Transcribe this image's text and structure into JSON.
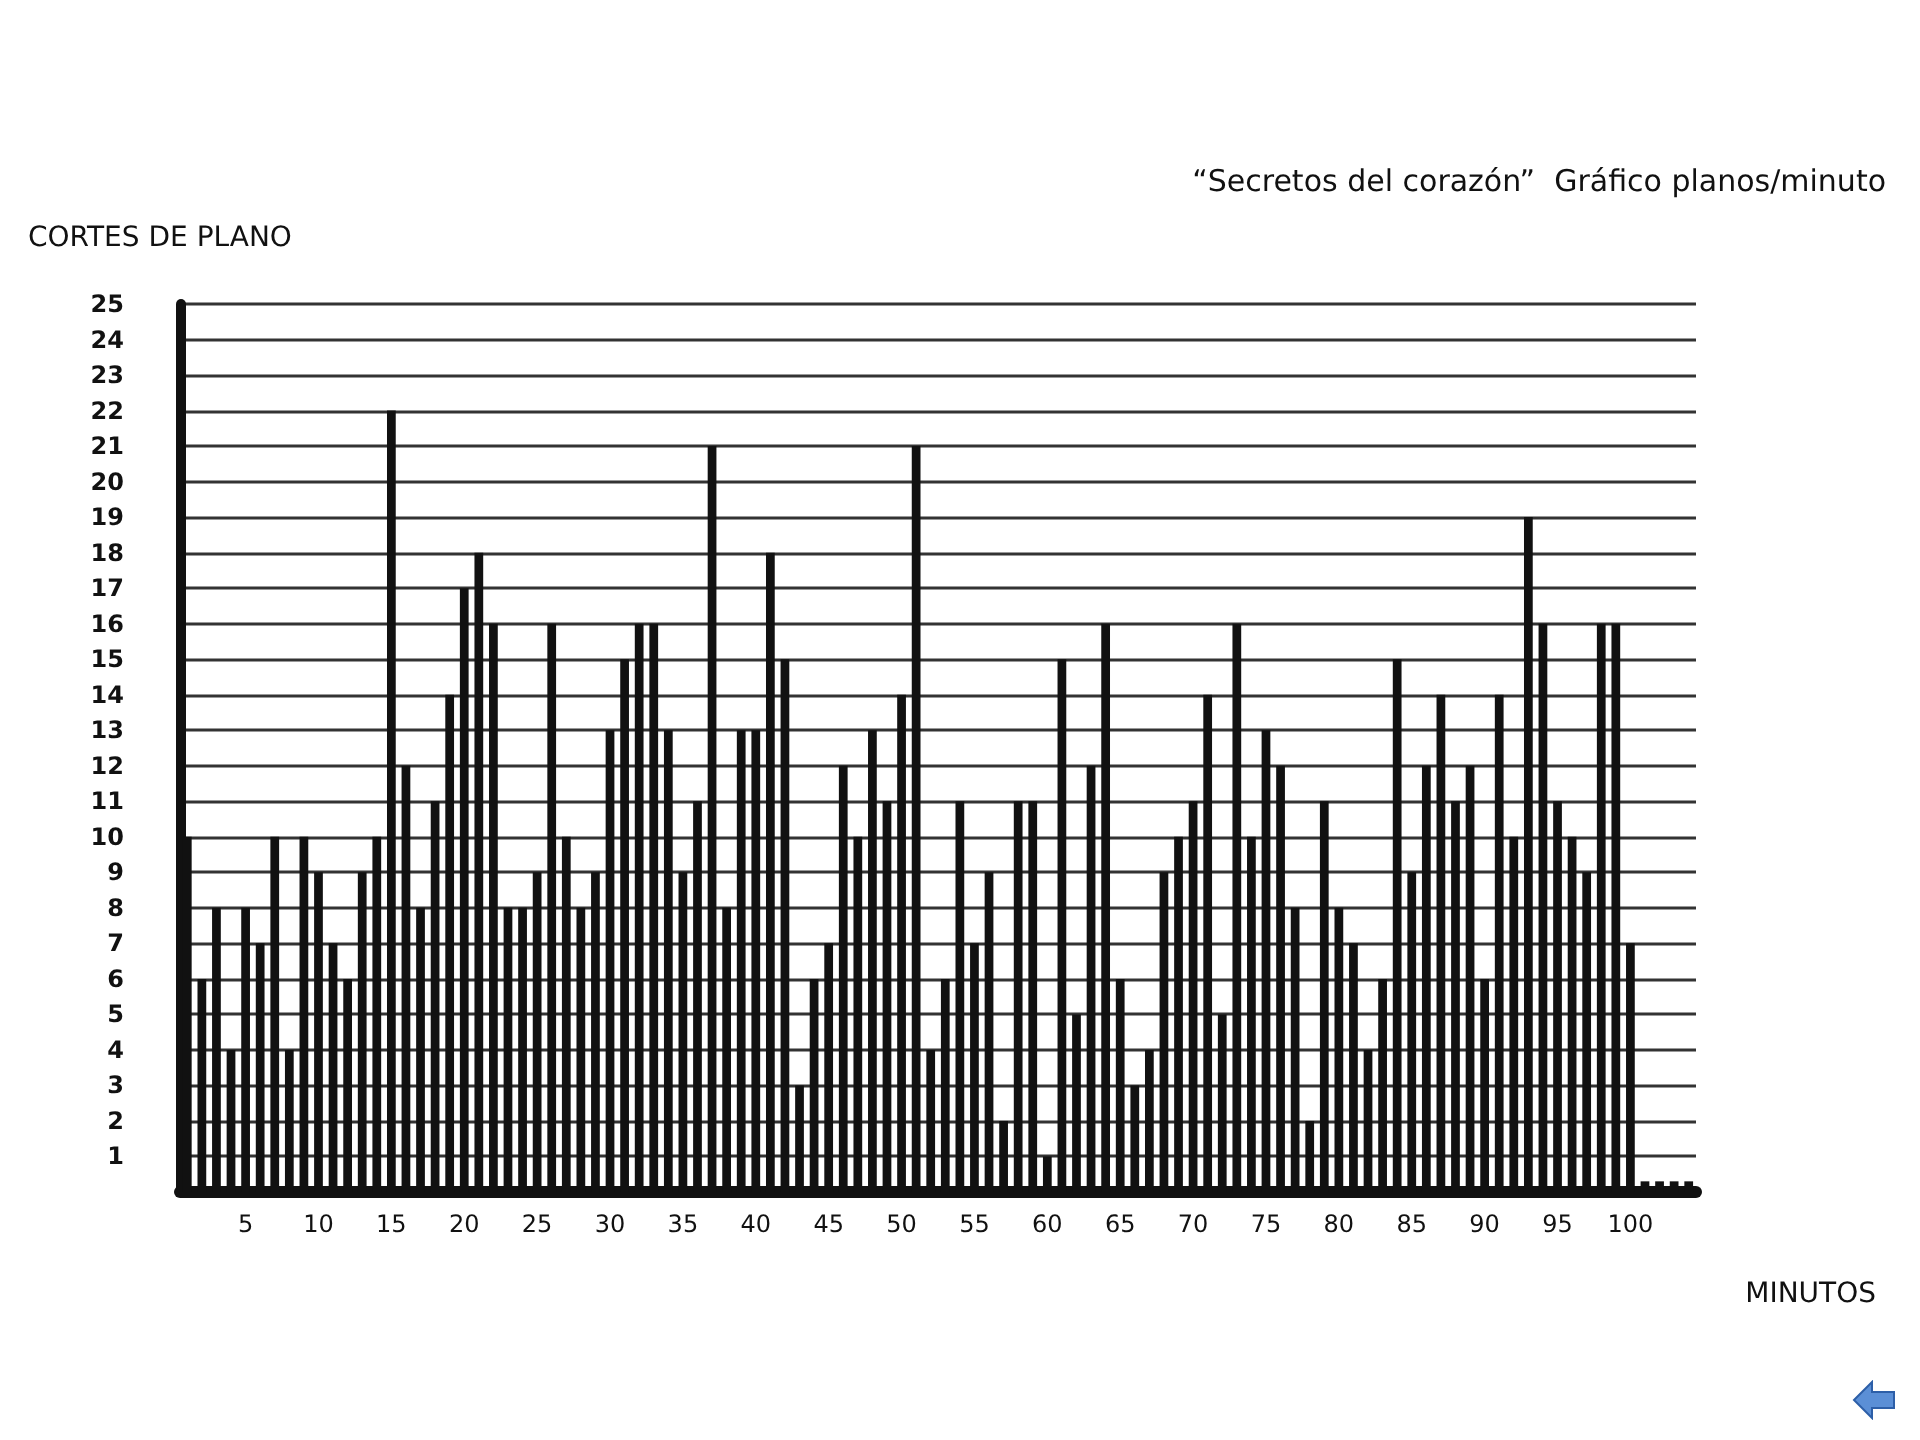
{
  "chart_data": {
    "type": "bar",
    "title": "“Secretos del corazón”  Gráfico planos/minuto",
    "xlabel": "MINUTOS",
    "ylabel": "CORTES DE PLANO",
    "categories": [
      null,
      null,
      null,
      null,
      "5",
      null,
      null,
      null,
      null,
      "10",
      null,
      null,
      null,
      null,
      "15",
      null,
      null,
      null,
      null,
      "20",
      null,
      null,
      null,
      null,
      "25",
      null,
      null,
      null,
      null,
      "30",
      null,
      null,
      null,
      null,
      "35",
      null,
      null,
      null,
      null,
      "40",
      null,
      null,
      null,
      null,
      "45",
      null,
      null,
      null,
      null,
      "50",
      null,
      null,
      null,
      null,
      "55",
      null,
      null,
      null,
      null,
      "60",
      null,
      null,
      null,
      null,
      "65",
      null,
      null,
      null,
      null,
      "70",
      null,
      null,
      null,
      null,
      "75",
      null,
      null,
      null,
      null,
      "80",
      null,
      null,
      null,
      null,
      "85",
      null,
      null,
      null,
      null,
      "90",
      null,
      null,
      null,
      null,
      "95",
      null,
      null,
      null,
      null,
      "100",
      null,
      null,
      null,
      null
    ],
    "values": [
      10,
      6,
      8,
      4,
      8,
      7,
      10,
      4,
      10,
      9,
      7,
      6,
      9,
      10,
      22,
      12,
      8,
      11,
      14,
      17,
      18,
      16,
      8,
      8,
      9,
      16,
      10,
      8,
      9,
      13,
      15,
      16,
      16,
      13,
      9,
      11,
      21,
      8,
      13,
      13,
      18,
      15,
      3,
      6,
      7,
      12,
      10,
      13,
      11,
      14,
      21,
      4,
      6,
      11,
      7,
      9,
      2,
      11,
      11,
      1,
      15,
      5,
      12,
      16,
      6,
      3,
      4,
      9,
      10,
      11,
      14,
      5,
      16,
      10,
      13,
      12,
      8,
      2,
      11,
      8,
      7,
      4,
      6,
      15,
      9,
      12,
      14,
      11,
      12,
      6,
      14,
      10,
      19,
      16,
      11,
      10,
      9,
      16,
      16,
      7,
      0.3,
      0.3,
      0.3,
      0.3
    ],
    "color": "#111111",
    "ylim": [
      0,
      25
    ],
    "yticks": [
      1,
      2,
      3,
      4,
      5,
      6,
      7,
      8,
      9,
      10,
      11,
      12,
      13,
      14,
      15,
      16,
      17,
      18,
      19,
      20,
      21,
      22,
      23,
      24,
      25
    ],
    "grid": "y"
  }
}
